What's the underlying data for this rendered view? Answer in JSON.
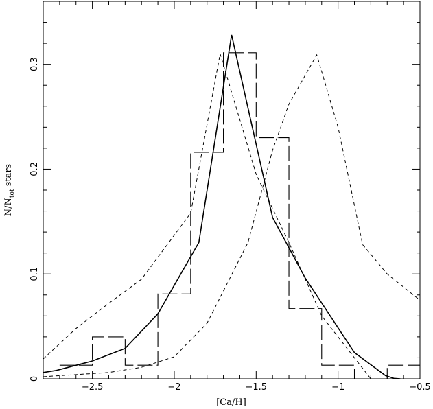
{
  "chart_data": {
    "type": "line",
    "title": "",
    "xlabel": "[Ca/H]",
    "ylabel": "N/N_tot stars",
    "ylabel_parts": {
      "main": "N/N",
      "sub": "tot",
      "tail": " stars"
    },
    "xlim": [
      -2.8,
      -0.5
    ],
    "ylim": [
      0,
      0.36
    ],
    "grid": false,
    "legend": "none",
    "x_ticks": [
      -2.5,
      -2,
      -1.5,
      -1,
      -0.5
    ],
    "x_tick_labels": [
      "−2.5",
      "−2",
      "−1.5",
      "−1",
      "−0.5"
    ],
    "y_ticks": [
      0,
      0.1,
      0.2,
      0.3
    ],
    "y_tick_labels": [
      "0",
      "0.1",
      "0.2",
      "0.3"
    ],
    "series": [
      {
        "style": "solid",
        "x": [
          -2.8,
          -2.72,
          -2.5,
          -2.3,
          -2.1,
          -1.85,
          -1.65,
          -1.4,
          -1.2,
          -0.9,
          -0.71,
          -0.66,
          -0.62
        ],
        "y": [
          0.006,
          0.008,
          0.017,
          0.029,
          0.062,
          0.13,
          0.328,
          0.154,
          0.096,
          0.025,
          0.003,
          0.0005,
          0.0
        ]
      },
      {
        "style": "long-dash-step",
        "bin_edges": [
          -2.7,
          -2.5,
          -2.3,
          -2.1,
          -1.9,
          -1.7,
          -1.5,
          -1.3,
          -1.1,
          -0.9,
          -0.7,
          -0.5
        ],
        "values": [
          0.013,
          0.04,
          0.013,
          0.081,
          0.216,
          0.311,
          0.23,
          0.067,
          0.013,
          0.0,
          0.013
        ]
      },
      {
        "style": "short-dash",
        "x": [
          -2.8,
          -2.6,
          -2.4,
          -2.2,
          -1.9,
          -1.72,
          -1.5,
          -1.3,
          -1.1,
          -0.85,
          -0.8
        ],
        "y": [
          0.019,
          0.048,
          0.072,
          0.095,
          0.158,
          0.31,
          0.195,
          0.13,
          0.06,
          0.01,
          0.0
        ]
      },
      {
        "style": "short-dash",
        "x": [
          -2.8,
          -2.4,
          -2.2,
          -2.0,
          -1.8,
          -1.55,
          -1.4,
          -1.3,
          -1.13,
          -1.0,
          -0.85,
          -0.7,
          -0.5
        ],
        "y": [
          0.002,
          0.006,
          0.011,
          0.021,
          0.053,
          0.13,
          0.218,
          0.262,
          0.309,
          0.24,
          0.128,
          0.1,
          0.075
        ]
      }
    ]
  }
}
